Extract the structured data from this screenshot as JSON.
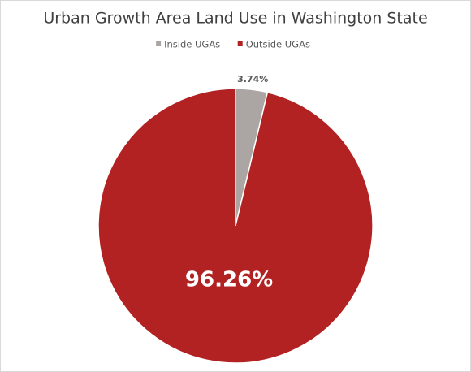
{
  "chart_data": {
    "type": "pie",
    "title": "Urban Growth Area Land Use in Washington State",
    "categories": [
      "Inside UGAs",
      "Outside UGAs"
    ],
    "values": [
      3.74,
      96.26
    ],
    "value_labels": [
      "3.74%",
      "96.26%"
    ],
    "colors": [
      "#aba6a4",
      "#b22222"
    ],
    "legend": "top"
  }
}
